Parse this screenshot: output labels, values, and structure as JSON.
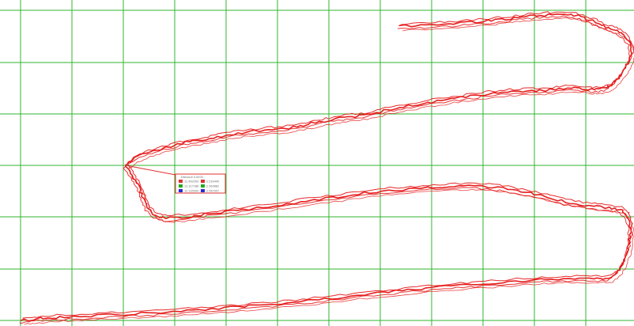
{
  "grid": {
    "color": "#2fb52f",
    "background": "#ffffff"
  },
  "trace_color": "#e61e1e",
  "info_box": {
    "title": "Distance 0.0000",
    "entries": [
      {
        "color": "#e03030",
        "value": "12.462500"
      },
      {
        "color": "#e03030",
        "value": "2.539445"
      },
      {
        "color": "#22aa22",
        "value": "12.317188"
      },
      {
        "color": "#22aa22",
        "value": "2.563682"
      },
      {
        "color": "#2a2ad8",
        "value": "12.195000"
      },
      {
        "color": "#2a2ad8",
        "value": "2.567007"
      }
    ]
  }
}
